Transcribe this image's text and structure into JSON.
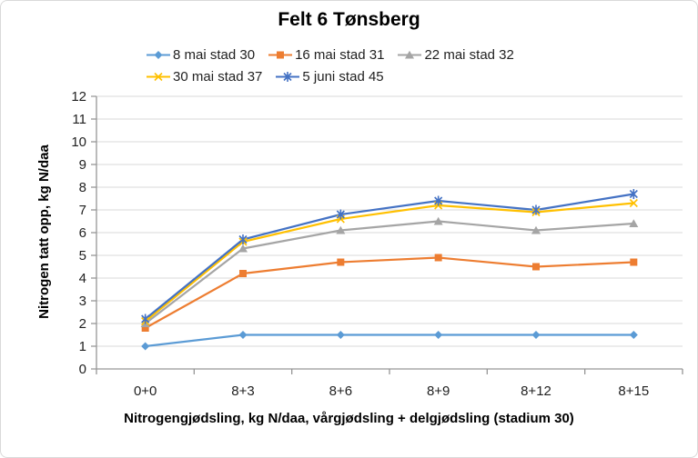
{
  "window": {
    "background": "#ffffff",
    "border_color": "#d9d9d9"
  },
  "chart_data": {
    "type": "line",
    "title": "Felt 6 Tønsberg",
    "xlabel": "Nitrogengjødsling, kg N/daa, vårgjødsling + delgjødsling (stadium 30)",
    "ylabel": "Nitrogen tatt opp, kg N/daa",
    "categories": [
      "0+0",
      "8+3",
      "8+6",
      "8+9",
      "8+12",
      "8+15"
    ],
    "ylim": [
      0,
      12
    ],
    "ytick_step": 1,
    "yticks": [
      0,
      1,
      2,
      3,
      4,
      5,
      6,
      7,
      8,
      9,
      10,
      11,
      12
    ],
    "grid": "horizontal",
    "gridline_color": "#d9d9d9",
    "axis_color": "#969696",
    "tick_label_color": "#1f1f1f",
    "legend_position": "top",
    "legend_rows": [
      [
        0,
        1,
        2
      ],
      [
        3,
        4
      ]
    ],
    "series": [
      {
        "name": "8 mai stad 30",
        "color": "#5B9BD5",
        "marker": "diamond",
        "values": [
          1.0,
          1.5,
          1.5,
          1.5,
          1.5,
          1.5
        ]
      },
      {
        "name": "16 mai stad 31",
        "color": "#ED7D31",
        "marker": "square",
        "values": [
          1.8,
          4.2,
          4.7,
          4.9,
          4.5,
          4.7
        ]
      },
      {
        "name": "22 mai stad 32",
        "color": "#A5A5A5",
        "marker": "triangle",
        "values": [
          2.0,
          5.3,
          6.1,
          6.5,
          6.1,
          6.4
        ]
      },
      {
        "name": "30 mai stad 37",
        "color": "#FFC000",
        "marker": "x",
        "values": [
          2.1,
          5.6,
          6.6,
          7.2,
          6.9,
          7.3
        ]
      },
      {
        "name": "5 juni stad 45",
        "color": "#4472C4",
        "marker": "asterisk",
        "values": [
          2.2,
          5.7,
          6.8,
          7.4,
          7.0,
          7.7
        ]
      }
    ]
  }
}
